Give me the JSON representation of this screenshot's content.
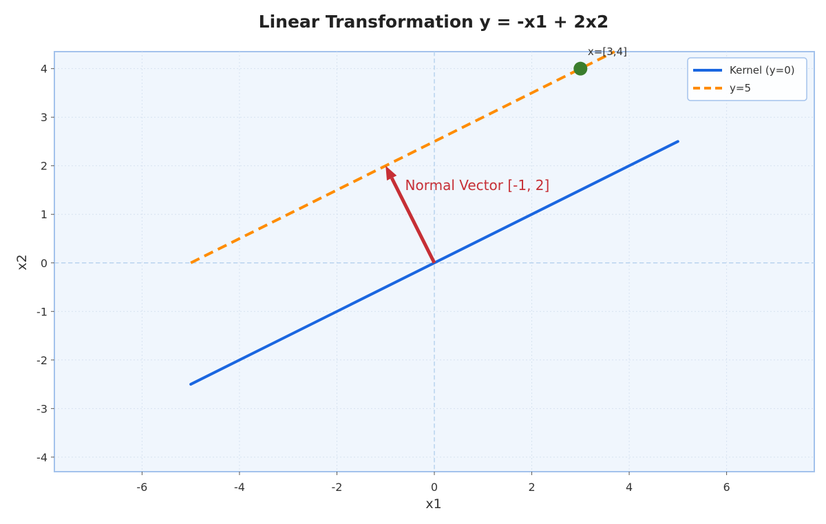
{
  "chart_data": {
    "type": "line",
    "title": "Linear Transformation y = -x1 + 2x2",
    "xlabel": "x1",
    "ylabel": "x2",
    "xlim": [
      -7.8,
      7.8
    ],
    "ylim": [
      -4.3,
      4.35
    ],
    "xticks": [
      -6,
      -4,
      -2,
      0,
      2,
      4,
      6
    ],
    "yticks": [
      -4,
      -3,
      -2,
      -1,
      0,
      1,
      2,
      3,
      4
    ],
    "grid": true,
    "legend_position": "top-right",
    "series": [
      {
        "name": "Kernel (y=0)",
        "color": "#1a66e0",
        "style": "solid",
        "x": [
          -5,
          5
        ],
        "y": [
          -2.5,
          2.5
        ]
      },
      {
        "name": "y=5",
        "color": "#ff8c00",
        "style": "dashed",
        "x": [
          -5,
          3.7
        ],
        "y": [
          0,
          4.35
        ]
      }
    ],
    "annotations": [
      {
        "type": "arrow",
        "label": "Normal Vector [-1, 2]",
        "from": [
          0,
          0
        ],
        "to": [
          -1,
          2
        ],
        "color": "#c62f35",
        "label_at": [
          -0.6,
          1.6
        ]
      },
      {
        "type": "point",
        "label": "x=[3,4]",
        "at": [
          3,
          4
        ],
        "color": "#3a7d2c",
        "label_at": [
          3.15,
          4.35
        ]
      }
    ]
  }
}
